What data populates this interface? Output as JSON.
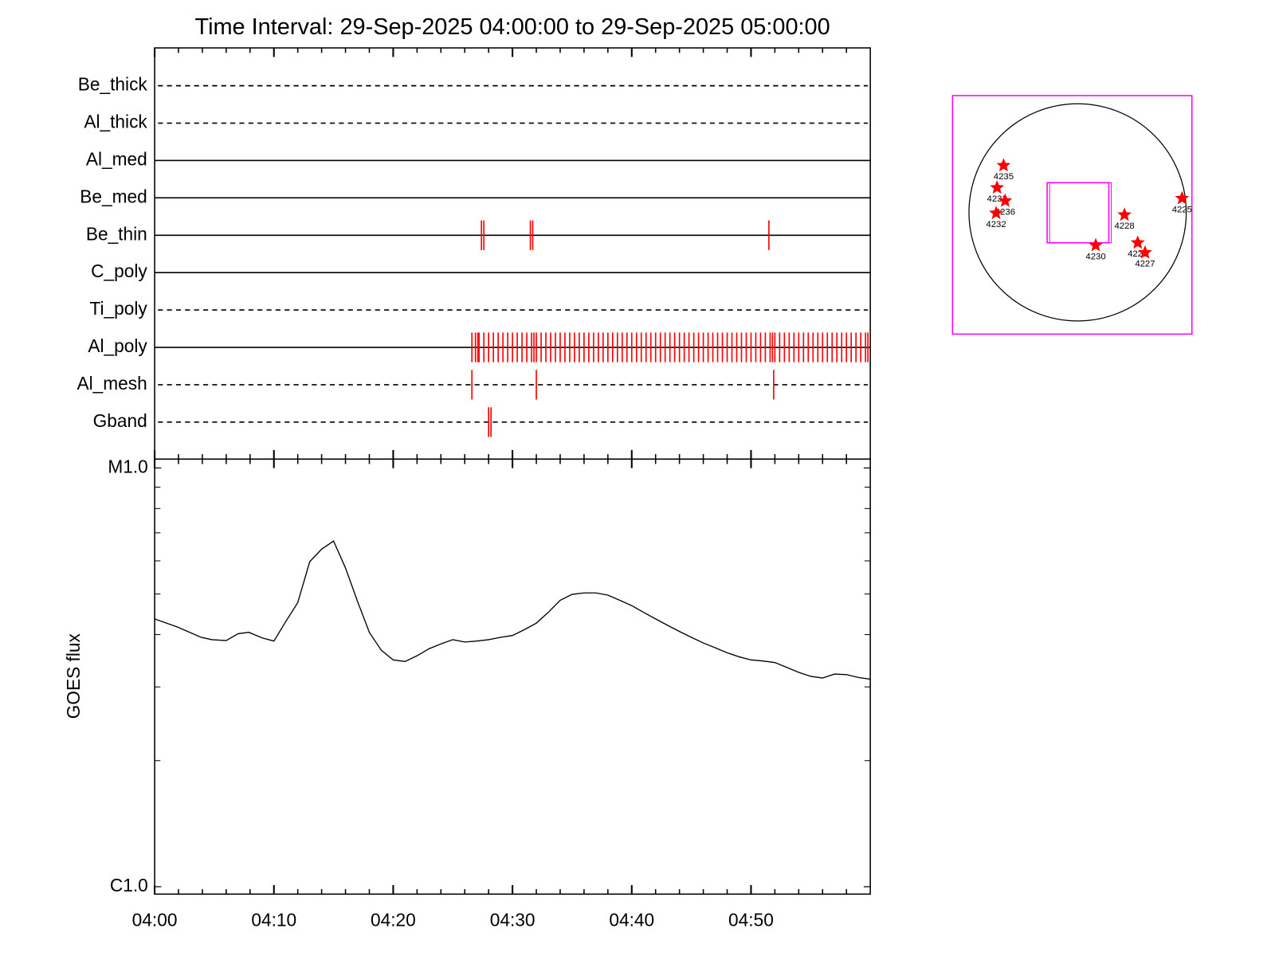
{
  "chart_data": [
    {
      "type": "timeline",
      "title": "Time Interval: 29-Sep-2025 04:00:00 to 29-Sep-2025 05:00:00",
      "xlim": [
        0,
        60
      ],
      "xticks": [
        0,
        10,
        20,
        30,
        40,
        50
      ],
      "xminorticks": [
        2,
        4,
        6,
        8,
        12,
        14,
        16,
        18,
        22,
        24,
        26,
        28,
        32,
        34,
        36,
        38,
        42,
        44,
        46,
        48,
        52,
        54,
        56,
        58
      ],
      "color": "#ff0000",
      "rows": [
        {
          "name": "Be_thick",
          "line_style": "dashed",
          "events": []
        },
        {
          "name": "Al_thick",
          "line_style": "dashed",
          "events": []
        },
        {
          "name": "Al_med",
          "line_style": "solid",
          "events": []
        },
        {
          "name": "Be_med",
          "line_style": "solid",
          "events": []
        },
        {
          "name": "Be_thin",
          "line_style": "solid",
          "events": [
            27.4,
            27.6,
            31.5,
            31.7,
            51.5
          ]
        },
        {
          "name": "C_poly",
          "line_style": "solid",
          "events": []
        },
        {
          "name": "Ti_poly",
          "line_style": "dashed",
          "events": []
        },
        {
          "name": "Al_poly",
          "line_style": "solid",
          "events": [
            26.6,
            26.9,
            27.1,
            27.2,
            27.6,
            28.0,
            28.4,
            28.8,
            29.2,
            29.6,
            30.0,
            30.4,
            30.8,
            31.2,
            31.6,
            31.8,
            32.0,
            32.4,
            32.8,
            33.2,
            33.6,
            34.0,
            34.4,
            34.8,
            35.2,
            35.6,
            36.0,
            36.4,
            36.8,
            37.2,
            37.6,
            38.0,
            38.4,
            38.8,
            39.2,
            39.6,
            40.0,
            40.4,
            40.8,
            41.2,
            41.6,
            42.0,
            42.4,
            42.8,
            43.2,
            43.6,
            44.0,
            44.4,
            44.8,
            45.2,
            45.6,
            46.0,
            46.4,
            46.8,
            47.2,
            47.6,
            48.0,
            48.4,
            48.8,
            49.2,
            49.6,
            50.0,
            50.4,
            50.8,
            51.2,
            51.6,
            51.8,
            52.0,
            52.4,
            52.8,
            53.2,
            53.6,
            54.0,
            54.4,
            54.8,
            55.2,
            55.6,
            56.0,
            56.4,
            56.8,
            57.2,
            57.6,
            58.0,
            58.4,
            58.8,
            59.2,
            59.6,
            59.8
          ]
        },
        {
          "name": "Al_mesh",
          "line_style": "dashed",
          "events": [
            26.6,
            32.0,
            51.9
          ]
        },
        {
          "name": "Gband",
          "line_style": "dashed",
          "events": [
            28.0,
            28.2
          ]
        }
      ]
    },
    {
      "type": "line",
      "y_label": "GOES flux",
      "log_y": true,
      "color": "#000000",
      "xlim": [
        0,
        60
      ],
      "ylim": [
        9.6e-07,
        1.05e-05
      ],
      "xticks": [
        {
          "value": 0,
          "label": "04:00"
        },
        {
          "value": 10,
          "label": "04:10"
        },
        {
          "value": 20,
          "label": "04:20"
        },
        {
          "value": 30,
          "label": "04:30"
        },
        {
          "value": 40,
          "label": "04:40"
        },
        {
          "value": 50,
          "label": "04:50"
        }
      ],
      "xminorticks": [
        2,
        4,
        6,
        8,
        12,
        14,
        16,
        18,
        22,
        24,
        26,
        28,
        32,
        34,
        36,
        38,
        42,
        44,
        46,
        48,
        52,
        54,
        56,
        58
      ],
      "yticks": [
        {
          "value": 1e-06,
          "label": "C1.0"
        },
        {
          "value": 1e-05,
          "label": "M1.0"
        }
      ],
      "yminorticks": [
        2e-06,
        3e-06,
        4e-06,
        5e-06,
        6e-06,
        7e-06,
        8e-06,
        9e-06
      ],
      "x": [
        0,
        1.9,
        3.9,
        4.8,
        6,
        7,
        7.9,
        9,
        10,
        11,
        12,
        13,
        14,
        15,
        16,
        17,
        18,
        19,
        20,
        21,
        22,
        23,
        24,
        25,
        26,
        27,
        28,
        29,
        30,
        31,
        32,
        33,
        34,
        35,
        36,
        37,
        38,
        39,
        40,
        41,
        42,
        43,
        44,
        45,
        46,
        47,
        48,
        49,
        50,
        51,
        52,
        53,
        54,
        55,
        56,
        57,
        58,
        59,
        60
      ],
      "values": [
        4.36e-06,
        4.17e-06,
        3.94e-06,
        3.89e-06,
        3.87e-06,
        4.02e-06,
        4.05e-06,
        3.93e-06,
        3.86e-06,
        4.3e-06,
        4.77e-06,
        5.97e-06,
        6.4e-06,
        6.69e-06,
        5.77e-06,
        4.81e-06,
        4.05e-06,
        3.67e-06,
        3.48e-06,
        3.45e-06,
        3.56e-06,
        3.7e-06,
        3.8e-06,
        3.89e-06,
        3.84e-06,
        3.86e-06,
        3.89e-06,
        3.94e-06,
        3.98e-06,
        4.11e-06,
        4.26e-06,
        4.52e-06,
        4.83e-06,
        4.99e-06,
        5.03e-06,
        5.03e-06,
        4.97e-06,
        4.83e-06,
        4.69e-06,
        4.52e-06,
        4.36e-06,
        4.21e-06,
        4.07e-06,
        3.94e-06,
        3.82e-06,
        3.72e-06,
        3.62e-06,
        3.54e-06,
        3.48e-06,
        3.46e-06,
        3.43e-06,
        3.34e-06,
        3.25e-06,
        3.18e-06,
        3.15e-06,
        3.22e-06,
        3.21e-06,
        3.16e-06,
        3.13e-06
      ]
    },
    {
      "type": "map",
      "xlim": [
        -1105,
        1010
      ],
      "ylim": [
        -1076,
        1032
      ],
      "sun_radius": 960,
      "frame_color": "#ff00ff",
      "limb_color": "#000000",
      "marker_color": "#ff0000",
      "fov": {
        "xlim": [
          -269,
          276
        ],
        "ylim": [
          -269,
          262
        ]
      },
      "regions": [
        {
          "name": "4235",
          "x": -654,
          "y": 414
        },
        {
          "name": "4233",
          "x": -712,
          "y": 218
        },
        {
          "name": "4236",
          "x": -640,
          "y": 102
        },
        {
          "name": "4232",
          "x": -720,
          "y": -7
        },
        {
          "name": "4228",
          "x": 414,
          "y": -22
        },
        {
          "name": "4230",
          "x": 160,
          "y": -291
        },
        {
          "name": "4226",
          "x": 531,
          "y": -269
        },
        {
          "name": "4227",
          "x": 596,
          "y": -356
        },
        {
          "name": "4225",
          "x": 923,
          "y": 124
        }
      ]
    }
  ]
}
